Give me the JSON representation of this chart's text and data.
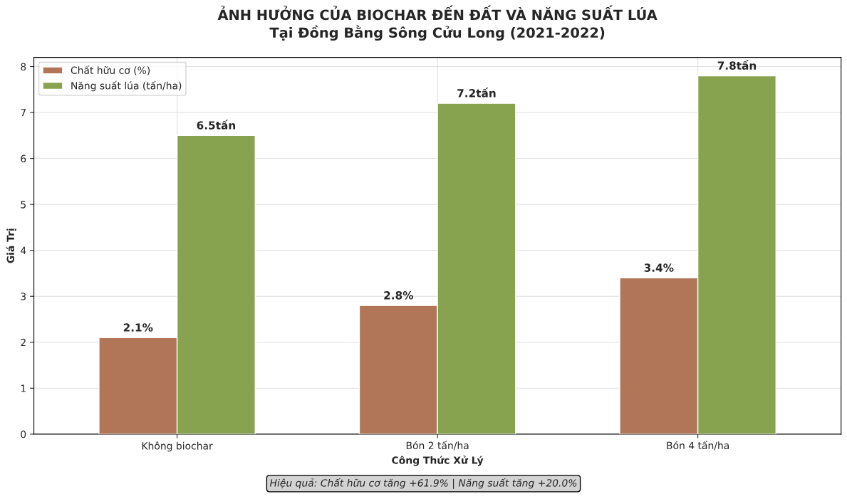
{
  "chart_data": {
    "type": "bar",
    "title": "ẢNH HƯỞNG CỦA BIOCHAR ĐẾN ĐẤT VÀ NĂNG SUẤT LÚA\nTại Đồng Bằng Sông Cửu Long (2021-2022)",
    "xlabel": "Công Thức Xử Lý",
    "ylabel": "Giá Trị",
    "categories": [
      "Không biochar",
      "Bón 2 tấn/ha",
      "Bón 4 tấn/ha"
    ],
    "series": [
      {
        "name": "Chất hữu cơ (%)",
        "color": "#b07657",
        "values": [
          2.1,
          2.8,
          3.4
        ],
        "value_labels": [
          "2.1%",
          "2.8%",
          "3.4%"
        ]
      },
      {
        "name": "Năng suất lúa (tấn/ha)",
        "color": "#88a34f",
        "values": [
          6.5,
          7.2,
          7.8
        ],
        "value_labels": [
          "6.5tấn",
          "7.2tấn",
          "7.8tấn"
        ]
      }
    ],
    "ylim": [
      0,
      8.2
    ],
    "yticks": [
      0,
      1,
      2,
      3,
      4,
      5,
      6,
      7,
      8
    ],
    "grid": true,
    "legend": "top left",
    "annotations": [
      "Hiệu quả: Chất hữu cơ tăng +61.9% | Năng suất tăng +20.0%"
    ]
  }
}
